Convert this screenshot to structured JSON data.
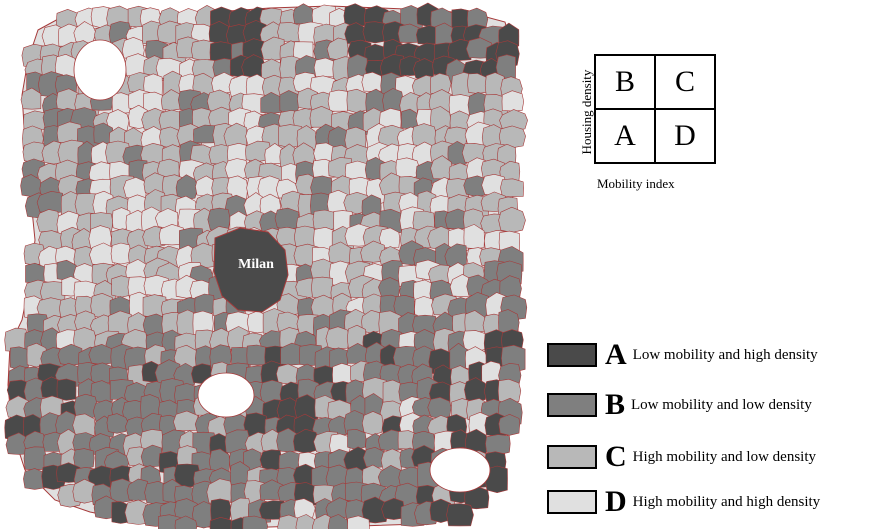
{
  "map": {
    "city_label": "Milan",
    "colors": {
      "A": "#4a4a4a",
      "B": "#7f7f7f",
      "C": "#b8b8b8",
      "D": "#e0e0e0",
      "border": "#a63a3a"
    }
  },
  "quadrant_key": {
    "cells": {
      "top_left": "B",
      "top_right": "C",
      "bottom_left": "A",
      "bottom_right": "D"
    },
    "y_label": "Housing density",
    "x_label": "Mobility index"
  },
  "legend": [
    {
      "letter": "A",
      "text": "Low mobility and high density",
      "color": "#4a4a4a"
    },
    {
      "letter": "B",
      "text": "Low mobility and low density",
      "color": "#7f7f7f"
    },
    {
      "letter": "C",
      "text": "High mobility and low density",
      "color": "#b8b8b8"
    },
    {
      "letter": "D",
      "text": "High mobility and high density",
      "color": "#e0e0e0"
    }
  ]
}
